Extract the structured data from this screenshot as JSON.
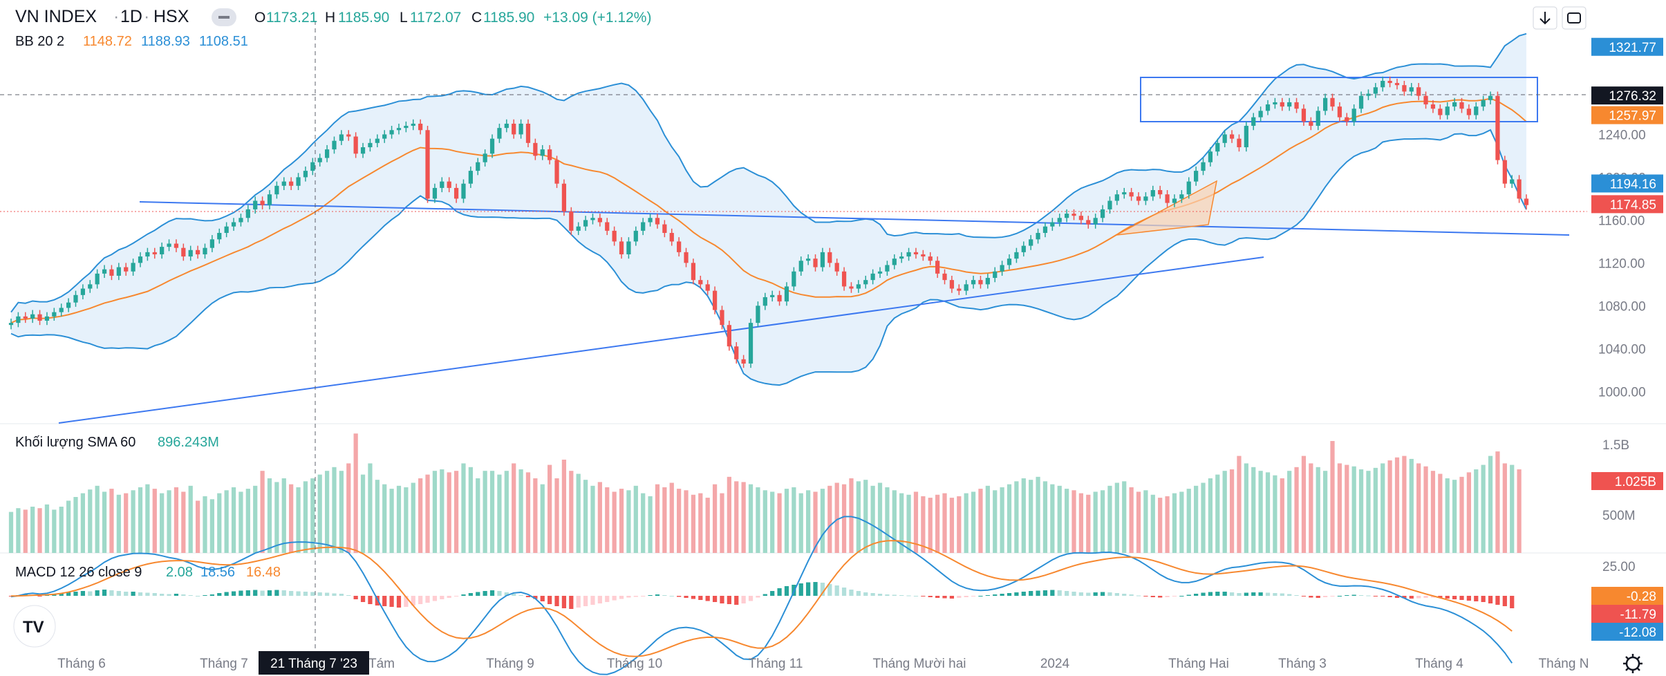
{
  "header": {
    "symbol": "VN INDEX",
    "interval": "1D",
    "exchange": "HSX",
    "open_label": "O",
    "open": "1173.21",
    "high_label": "H",
    "high": "1185.90",
    "low_label": "L",
    "low": "1172.07",
    "close_label": "C",
    "close": "1185.90",
    "change": "+13.09 (+1.12%)",
    "bb_label": "BB 20 2",
    "bb_basis": "1148.72",
    "bb_upper": "1188.93",
    "bb_lower": "1108.51"
  },
  "volume_pane": {
    "label": "Khối lượng SMA 60",
    "sma": "896.243M"
  },
  "macd_pane": {
    "label": "MACD 12 26 close 9",
    "hist": "2.08",
    "macd": "18.56",
    "signal": "16.48"
  },
  "crosshair_date": "21 Tháng 7 '23",
  "colors": {
    "up": "#26a69a",
    "down": "#ef5350",
    "up_vol": "#9fd9c9",
    "down_vol": "#f4a7a9",
    "bb_basis": "#f7882f",
    "bb_band": "#2b8fd6",
    "bb_fill": "#e6f1fb",
    "trendline": "#3c78f0",
    "macd_line": "#2b8fd6",
    "signal_line": "#f7882f"
  },
  "chart_data": {
    "type": "candlestick",
    "x_axis_labels": [
      "Tháng 6",
      "Tháng 7",
      "Tám",
      "Tháng 9",
      "Tháng 10",
      "Tháng 11",
      "Tháng Mười hai",
      "2024",
      "Tháng Hai",
      "Tháng 3",
      "Tháng 4",
      "Tháng N"
    ],
    "price_axis_ticks": [
      "1240.00",
      "1200.00",
      "1160.00",
      "1120.00",
      "1080.00",
      "1040.00",
      "1000.00"
    ],
    "price_range": [
      975,
      1330
    ],
    "price_badges": [
      {
        "label": "1321.77",
        "value": 1321.77,
        "color": "#2b8fd6"
      },
      {
        "label": "1276.32",
        "value": 1276.32,
        "color": "#131722"
      },
      {
        "label": "1257.97",
        "value": 1257.97,
        "color": "#f7882f"
      },
      {
        "label": "1194.16",
        "value": 1194.16,
        "color": "#2b8fd6"
      },
      {
        "label": "1174.85",
        "value": 1174.85,
        "color": "#ef5350"
      }
    ],
    "volume_axis_ticks": [
      "1.5B",
      "500M"
    ],
    "volume_badge": "1.025B",
    "macd_axis_ticks": [
      "25.00"
    ],
    "macd_badges": [
      {
        "label": "-0.28",
        "color": "#f7882f"
      },
      {
        "label": "-11.79",
        "color": "#ef5350"
      },
      {
        "label": "-12.08",
        "color": "#2b8fd6"
      }
    ],
    "closes": [
      1064,
      1070,
      1068,
      1072,
      1066,
      1070,
      1074,
      1078,
      1083,
      1090,
      1096,
      1100,
      1110,
      1114,
      1108,
      1116,
      1112,
      1120,
      1126,
      1130,
      1128,
      1135,
      1138,
      1134,
      1126,
      1132,
      1128,
      1134,
      1142,
      1148,
      1154,
      1158,
      1162,
      1170,
      1178,
      1174,
      1184,
      1192,
      1196,
      1192,
      1200,
      1206,
      1214,
      1218,
      1226,
      1234,
      1240,
      1238,
      1222,
      1228,
      1232,
      1236,
      1240,
      1244,
      1246,
      1248,
      1250,
      1244,
      1180,
      1190,
      1196,
      1190,
      1180,
      1194,
      1206,
      1214,
      1222,
      1236,
      1246,
      1250,
      1240,
      1250,
      1232,
      1220,
      1226,
      1216,
      1194,
      1168,
      1150,
      1154,
      1160,
      1162,
      1158,
      1150,
      1140,
      1128,
      1140,
      1150,
      1158,
      1162,
      1156,
      1148,
      1140,
      1130,
      1120,
      1104,
      1100,
      1094,
      1076,
      1062,
      1042,
      1030,
      1026,
      1064,
      1080,
      1088,
      1090,
      1084,
      1098,
      1112,
      1122,
      1124,
      1116,
      1130,
      1120,
      1112,
      1098,
      1096,
      1100,
      1104,
      1110,
      1112,
      1118,
      1124,
      1126,
      1130,
      1128,
      1126,
      1122,
      1110,
      1104,
      1096,
      1094,
      1100,
      1104,
      1100,
      1106,
      1112,
      1118,
      1124,
      1130,
      1136,
      1142,
      1148,
      1154,
      1158,
      1162,
      1166,
      1164,
      1160,
      1156,
      1162,
      1170,
      1178,
      1184,
      1186,
      1182,
      1178,
      1182,
      1188,
      1184,
      1176,
      1180,
      1184,
      1196,
      1206,
      1214,
      1224,
      1232,
      1240,
      1236,
      1228,
      1248,
      1256,
      1262,
      1268,
      1270,
      1266,
      1270,
      1264,
      1252,
      1248,
      1262,
      1274,
      1266,
      1256,
      1252,
      1264,
      1276,
      1278,
      1284,
      1290,
      1288,
      1286,
      1280,
      1284,
      1276,
      1268,
      1264,
      1258,
      1266,
      1270,
      1264,
      1258,
      1266,
      1272,
      1276,
      1216,
      1194,
      1198,
      1180,
      1174
    ],
    "volumes": [
      0.55,
      0.6,
      0.58,
      0.62,
      0.6,
      0.65,
      0.58,
      0.62,
      0.7,
      0.75,
      0.8,
      0.85,
      0.9,
      0.82,
      0.86,
      0.78,
      0.8,
      0.84,
      0.88,
      0.92,
      0.86,
      0.8,
      0.84,
      0.88,
      0.82,
      0.9,
      0.7,
      0.76,
      0.72,
      0.8,
      0.84,
      0.88,
      0.82,
      0.86,
      0.9,
      1.1,
      1.0,
      0.95,
      1.0,
      0.92,
      0.88,
      0.96,
      1.0,
      1.05,
      1.1,
      1.15,
      1.1,
      1.2,
      1.6,
      1.05,
      1.2,
      0.98,
      0.92,
      0.86,
      0.9,
      0.88,
      0.94,
      1.0,
      1.05,
      1.1,
      1.12,
      1.08,
      1.1,
      1.2,
      1.15,
      1.0,
      1.1,
      1.1,
      1.05,
      1.1,
      1.2,
      1.12,
      1.08,
      1.0,
      0.92,
      1.18,
      1.0,
      1.25,
      1.1,
      1.06,
      0.98,
      0.9,
      0.95,
      0.88,
      0.82,
      0.86,
      0.84,
      0.9,
      0.8,
      0.76,
      0.92,
      0.88,
      0.94,
      0.86,
      0.84,
      0.78,
      0.8,
      0.74,
      0.92,
      0.8,
      1.02,
      0.96,
      0.95,
      0.92,
      0.88,
      0.84,
      0.82,
      0.8,
      0.86,
      0.88,
      0.8,
      0.84,
      0.82,
      0.86,
      0.9,
      0.94,
      0.92,
      1.0,
      0.96,
      0.98,
      0.9,
      0.94,
      0.88,
      0.84,
      0.8,
      0.78,
      0.82,
      0.76,
      0.74,
      0.78,
      0.8,
      0.74,
      0.76,
      0.8,
      0.82,
      0.86,
      0.9,
      0.84,
      0.88,
      0.92,
      0.96,
      1.0,
      0.98,
      1.02,
      0.96,
      0.92,
      0.9,
      0.86,
      0.84,
      0.8,
      0.78,
      0.82,
      0.84,
      0.9,
      0.94,
      0.96,
      0.88,
      0.82,
      0.84,
      0.78,
      0.74,
      0.76,
      0.8,
      0.82,
      0.86,
      0.9,
      0.94,
      1.0,
      1.05,
      1.1,
      1.12,
      1.3,
      1.2,
      1.15,
      1.1,
      1.08,
      1.04,
      1.0,
      1.1,
      1.15,
      1.3,
      1.2,
      1.15,
      1.1,
      1.5,
      1.2,
      1.18,
      1.16,
      1.12,
      1.1,
      1.14,
      1.2,
      1.24,
      1.28,
      1.3,
      1.26,
      1.2,
      1.16,
      1.1,
      1.06,
      1.0,
      0.98,
      1.02,
      1.08,
      1.12,
      1.18,
      1.3,
      1.36,
      1.2,
      1.18,
      1.12
    ],
    "macd_hist": [
      -0.2,
      0.2,
      0.4,
      0.2,
      -0.1,
      0.2,
      0.5,
      0.8,
      1.0,
      1.2,
      1.4,
      1.3,
      1.6,
      1.8,
      1.6,
      1.4,
      1.2,
      1.2,
      1.0,
      0.9,
      0.8,
      0.6,
      0.5,
      0.6,
      0.4,
      0.2,
      0.0,
      0.2,
      0.4,
      0.8,
      1.1,
      1.3,
      1.5,
      1.6,
      1.7,
      1.5,
      1.6,
      1.7,
      1.6,
      1.4,
      1.3,
      1.2,
      1.1,
      1.0,
      0.9,
      0.7,
      0.6,
      0.2,
      -1.0,
      -1.8,
      -2.4,
      -2.8,
      -3.0,
      -3.2,
      -3.4,
      -3.2,
      -2.8,
      -2.4,
      -2.0,
      -1.5,
      -1.0,
      -0.6,
      -0.2,
      0.4,
      0.8,
      1.1,
      1.4,
      1.6,
      1.4,
      1.0,
      0.6,
      0.2,
      -0.4,
      -0.9,
      -1.6,
      -2.4,
      -3.0,
      -3.6,
      -3.8,
      -3.4,
      -3.0,
      -2.6,
      -2.2,
      -1.8,
      -1.3,
      -0.9,
      -0.5,
      -0.3,
      -0.1,
      0.2,
      0.4,
      0.2,
      0.0,
      -0.3,
      -0.6,
      -0.9,
      -1.2,
      -1.5,
      -1.8,
      -2.2,
      -2.4,
      -2.6,
      -2.2,
      -1.5,
      -0.5,
      0.5,
      1.4,
      2.2,
      2.8,
      3.2,
      3.6,
      3.9,
      4.0,
      3.8,
      3.4,
      3.0,
      2.4,
      1.8,
      1.4,
      1.0,
      0.8,
      0.6,
      0.4,
      0.3,
      0.2,
      0.1,
      0.0,
      -0.2,
      -0.4,
      -0.6,
      -0.7,
      -0.8,
      -0.6,
      -0.4,
      -0.2,
      0.0,
      0.2,
      0.4,
      0.6,
      0.8,
      1.0,
      1.2,
      1.4,
      1.5,
      1.6,
      1.7,
      1.6,
      1.4,
      1.2,
      1.0,
      0.9,
      1.0,
      1.1,
      1.0,
      0.8,
      0.6,
      0.4,
      0.1,
      -0.2,
      -0.4,
      -0.5,
      -0.4,
      -0.2,
      0.0,
      0.3,
      0.6,
      0.9,
      1.1,
      1.2,
      1.2,
      1.0,
      0.8,
      0.9,
      1.0,
      1.0,
      0.9,
      0.8,
      0.7,
      0.5,
      0.2,
      -0.2,
      -0.5,
      -0.6,
      -0.4,
      -0.2,
      0.0,
      0.2,
      0.3,
      0.2,
      0.1,
      -0.1,
      -0.2,
      -0.4,
      -0.6,
      -0.7,
      -0.8,
      -0.7,
      -0.6,
      -0.5,
      -0.6,
      -0.8,
      -1.0,
      -1.2,
      -1.4,
      -1.6,
      -1.8,
      -2.2,
      -2.6,
      -3.0,
      -3.6
    ]
  }
}
